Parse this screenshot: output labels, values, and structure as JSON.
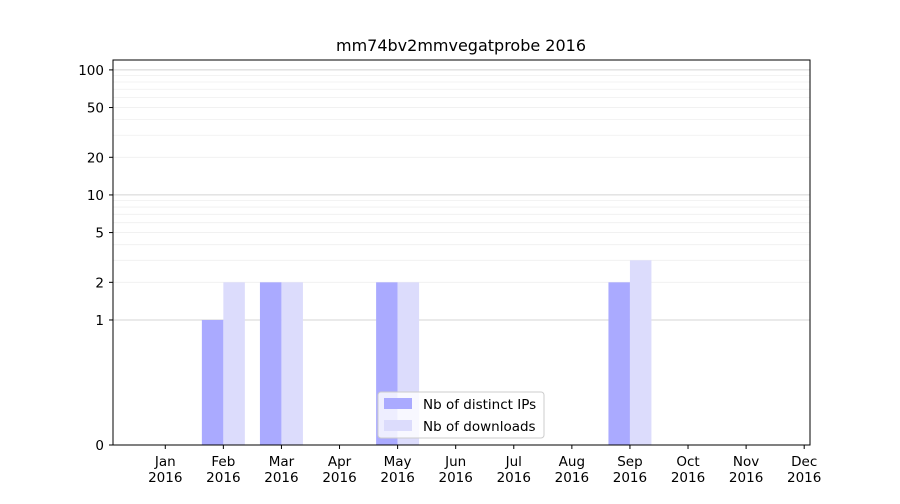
{
  "chart_data": {
    "type": "bar",
    "title": "mm74bv2mmvegatprobe 2016",
    "xlabel": "",
    "ylabel": "",
    "y_scale": "symlog",
    "ylim": [
      0,
      120
    ],
    "grid": true,
    "legend_position": "bottom-center",
    "categories": [
      [
        "Jan",
        "2016"
      ],
      [
        "Feb",
        "2016"
      ],
      [
        "Mar",
        "2016"
      ],
      [
        "Apr",
        "2016"
      ],
      [
        "May",
        "2016"
      ],
      [
        "Jun",
        "2016"
      ],
      [
        "Jul",
        "2016"
      ],
      [
        "Aug",
        "2016"
      ],
      [
        "Sep",
        "2016"
      ],
      [
        "Oct",
        "2016"
      ],
      [
        "Nov",
        "2016"
      ],
      [
        "Dec",
        "2016"
      ]
    ],
    "y_ticks": [
      {
        "value": 0,
        "label": "0"
      },
      {
        "value": 1,
        "label": "1"
      },
      {
        "value": 2,
        "label": "2"
      },
      {
        "value": 5,
        "label": "5"
      },
      {
        "value": 10,
        "label": "10"
      },
      {
        "value": 20,
        "label": "20"
      },
      {
        "value": 50,
        "label": "50"
      },
      {
        "value": 100,
        "label": "100"
      }
    ],
    "series": [
      {
        "name": "Nb of distinct IPs",
        "color": "#aaaaff",
        "values": [
          0,
          1,
          2,
          0,
          2,
          0,
          0,
          0,
          2,
          0,
          0,
          0
        ]
      },
      {
        "name": "Nb of downloads",
        "color": "#dcdcfc",
        "values": [
          0,
          2,
          2,
          0,
          2,
          0,
          0,
          0,
          3,
          0,
          0,
          0
        ]
      }
    ]
  }
}
